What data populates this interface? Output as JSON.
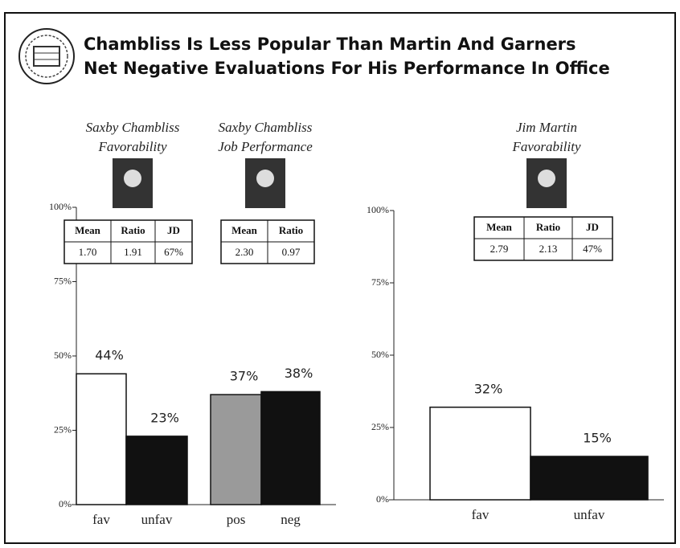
{
  "title": "Chambliss Is Less Popular Than Martin And Garners Net Negative Evaluations For His Performance In Office",
  "chart_data": [
    {
      "type": "bar",
      "categories": [
        "fav",
        "unfav",
        "pos",
        "neg"
      ],
      "values": [
        44,
        23,
        37,
        38
      ],
      "value_labels": [
        "44%",
        "23%",
        "37%",
        "38%"
      ],
      "colors": [
        "#ffffff",
        "#111111",
        "#9a9a9a",
        "#111111"
      ],
      "ylim": [
        0,
        100
      ],
      "yticks": [
        {
          "value": 0,
          "label": "0%"
        },
        {
          "value": 25,
          "label": "25%"
        },
        {
          "value": 50,
          "label": "50%"
        },
        {
          "value": 75,
          "label": "75%"
        },
        {
          "value": 100,
          "label": "100%"
        }
      ],
      "groups": [
        {
          "title": [
            "Saxby Chambliss",
            "Favorability"
          ],
          "header": [
            "Mean",
            "Ratio",
            "JD"
          ],
          "row": [
            "1.70",
            "1.91",
            "67%"
          ]
        },
        {
          "title": [
            "Saxby Chambliss",
            "Job Performance"
          ],
          "header": [
            "Mean",
            "Ratio"
          ],
          "row": [
            "2.30",
            "0.97"
          ]
        }
      ]
    },
    {
      "type": "bar",
      "categories": [
        "fav",
        "unfav"
      ],
      "values": [
        32,
        15
      ],
      "value_labels": [
        "32%",
        "15%"
      ],
      "colors": [
        "#ffffff",
        "#111111"
      ],
      "ylim": [
        0,
        100
      ],
      "yticks": [
        {
          "value": 0,
          "label": "0%"
        },
        {
          "value": 25,
          "label": "25%"
        },
        {
          "value": 50,
          "label": "50%"
        },
        {
          "value": 75,
          "label": "75%"
        },
        {
          "value": 100,
          "label": "100%"
        }
      ],
      "groups": [
        {
          "title": [
            "Jim Martin",
            "Favorability"
          ],
          "header": [
            "Mean",
            "Ratio",
            "JD"
          ],
          "row": [
            "2.79",
            "2.13",
            "47%"
          ]
        }
      ]
    }
  ]
}
